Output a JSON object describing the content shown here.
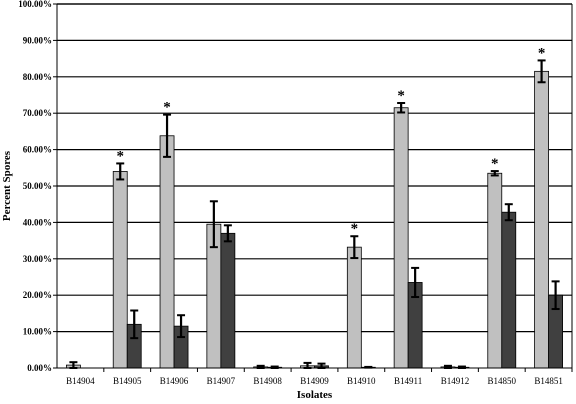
{
  "chart_data": {
    "type": "bar",
    "xlabel": "Isolates",
    "ylabel": "Percent Spores",
    "ylim": [
      0,
      100
    ],
    "yticks": [
      "0.00%",
      "10.00%",
      "20.00%",
      "30.00%",
      "40.00%",
      "50.00%",
      "60.00%",
      "70.00%",
      "80.00%",
      "90.00%",
      "100.00%"
    ],
    "grid": true,
    "legend": "none",
    "categories": [
      "B14904",
      "B14905",
      "B14906",
      "B14907",
      "B14908",
      "B14909",
      "B14910",
      "B14911",
      "B14912",
      "B14850",
      "B14851"
    ],
    "series": [
      {
        "color": "#c0c0c0",
        "values": [
          0.8,
          54.0,
          63.8,
          39.5,
          0.3,
          0.6,
          33.2,
          71.5,
          0.3,
          53.5,
          81.5
        ],
        "errors": [
          0.8,
          2.2,
          5.8,
          6.3,
          0.3,
          0.8,
          3.0,
          1.3,
          0.3,
          0.6,
          3.0
        ],
        "stars": [
          "",
          "*",
          "*",
          "",
          "",
          "",
          "*",
          "*",
          "",
          "*",
          "*"
        ]
      },
      {
        "color": "#404040",
        "values": [
          0.0,
          12.0,
          11.5,
          37.0,
          0.2,
          0.6,
          0.2,
          23.5,
          0.2,
          42.8,
          20.0
        ],
        "errors": [
          0.0,
          3.8,
          3.0,
          2.2,
          0.2,
          0.6,
          0.1,
          4.0,
          0.2,
          2.2,
          3.8
        ]
      }
    ]
  }
}
